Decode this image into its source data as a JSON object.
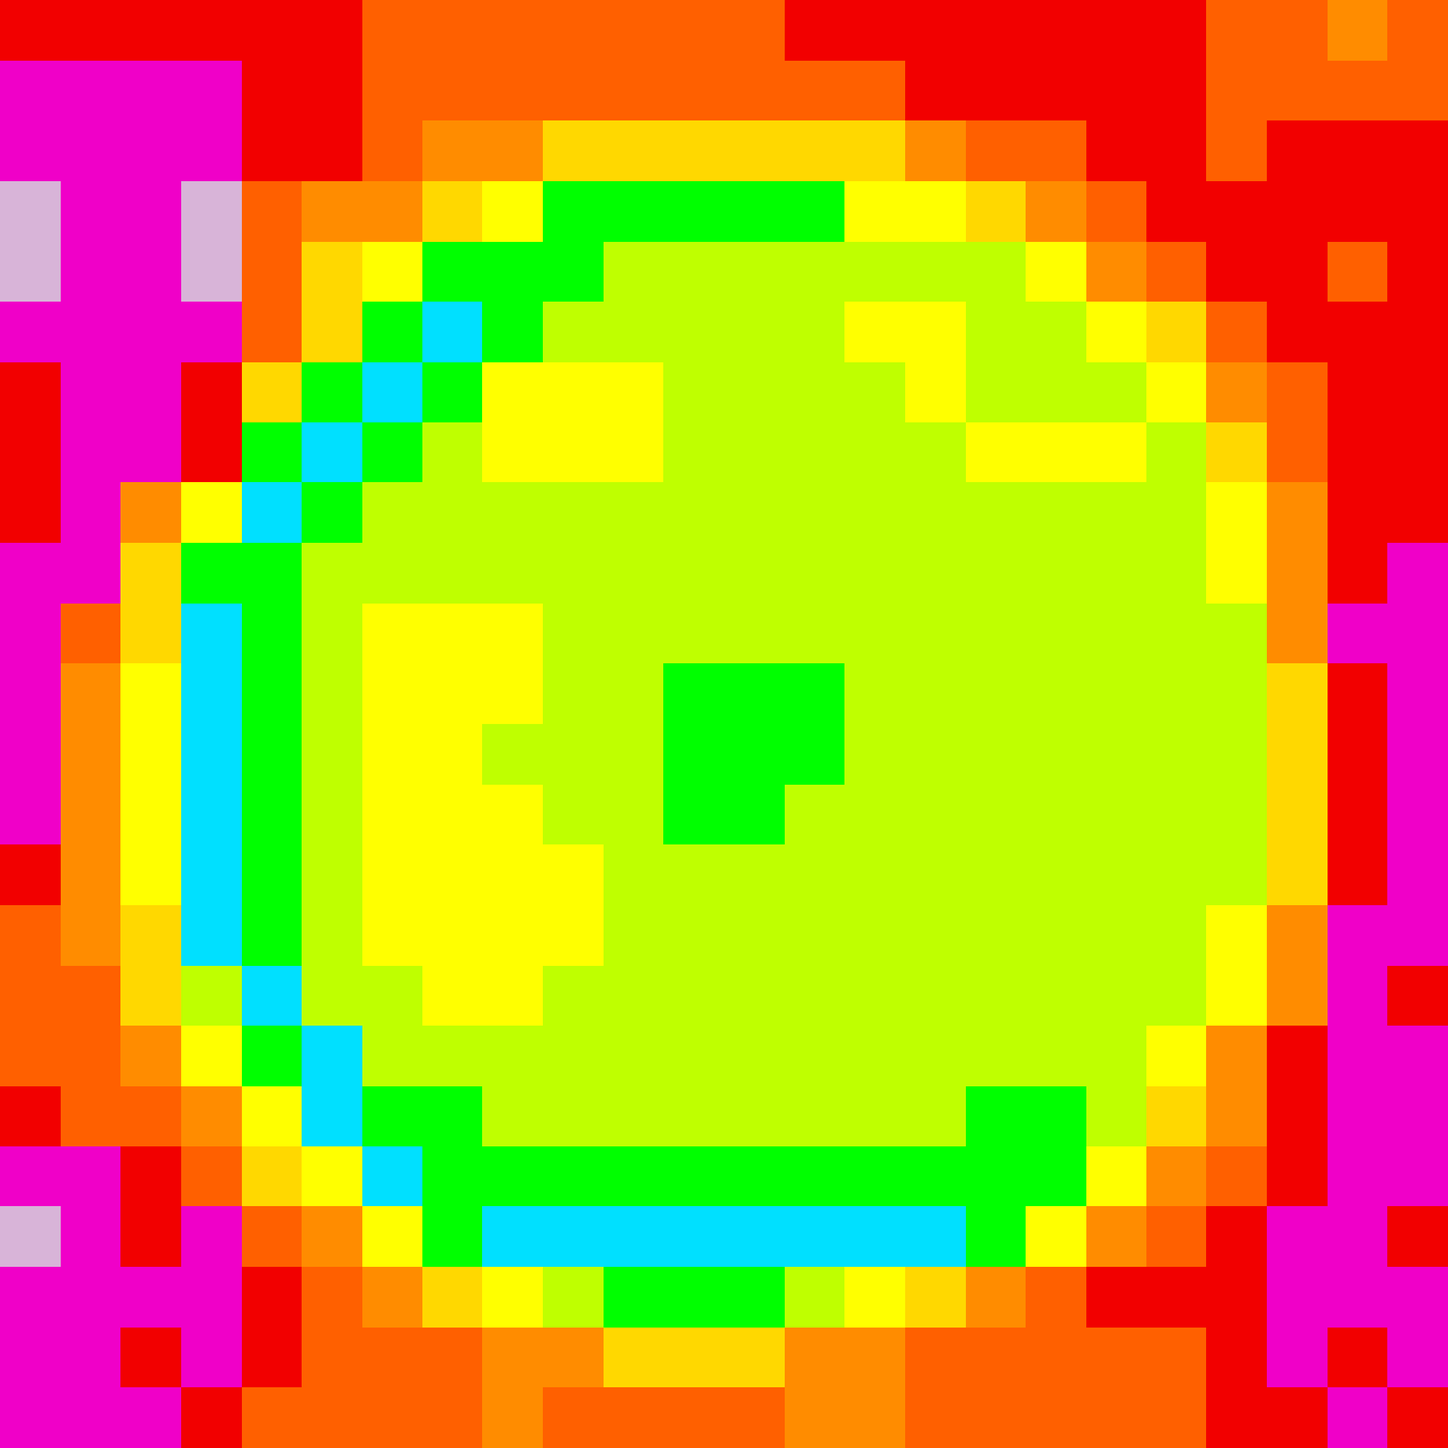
{
  "chart_data": {
    "type": "contour",
    "levels": [
      -0.5,
      0.5,
      1.5,
      2.5,
      3.5,
      4.5,
      5.5,
      6.5,
      7.5,
      8.5,
      9.5
    ],
    "colors": [
      "#d8b4d8",
      "#f000c8",
      "#f20000",
      "#ff6000",
      "#ff8c00",
      "#ffd800",
      "#ffff00",
      "#bfff00",
      "#00ff00",
      "#00e0ff"
    ],
    "tick_labels": false,
    "z": [
      [
        2,
        2,
        2,
        2,
        2,
        2,
        3,
        3,
        3,
        3,
        3,
        3,
        3,
        2,
        2,
        2,
        2,
        2,
        2,
        2,
        3,
        3,
        4,
        3
      ],
      [
        1,
        1,
        1,
        1,
        2,
        2,
        3,
        3,
        3,
        3,
        3,
        3,
        3,
        3,
        3,
        2,
        2,
        2,
        2,
        2,
        3,
        3,
        3,
        3
      ],
      [
        1,
        1,
        1,
        1,
        2,
        2,
        3,
        4,
        4,
        5,
        5,
        5,
        5,
        5,
        5,
        4,
        3,
        3,
        2,
        2,
        3,
        2,
        2,
        2
      ],
      [
        0,
        1,
        1,
        0,
        3,
        4,
        4,
        5,
        6,
        8,
        8,
        8,
        8,
        8,
        6,
        6,
        5,
        4,
        3,
        2,
        2,
        2,
        2,
        2
      ],
      [
        0,
        1,
        1,
        0,
        3,
        5,
        6,
        8,
        8,
        8,
        7,
        7,
        7,
        7,
        7,
        7,
        7,
        6,
        4,
        3,
        2,
        2,
        3,
        2
      ],
      [
        1,
        1,
        1,
        1,
        3,
        5,
        8,
        9,
        8,
        7,
        7,
        7,
        7,
        7,
        6,
        6,
        7,
        7,
        6,
        5,
        3,
        2,
        2,
        2
      ],
      [
        2,
        1,
        1,
        2,
        5,
        8,
        9,
        8,
        6,
        6,
        6,
        7,
        7,
        7,
        7,
        6,
        7,
        7,
        7,
        6,
        4,
        3,
        2,
        2
      ],
      [
        2,
        1,
        1,
        2,
        8,
        9,
        8,
        7,
        6,
        6,
        6,
        7,
        7,
        7,
        7,
        7,
        6,
        6,
        6,
        7,
        5,
        3,
        2,
        2
      ],
      [
        2,
        1,
        4,
        6,
        9,
        8,
        7,
        7,
        7,
        7,
        7,
        7,
        7,
        7,
        7,
        7,
        7,
        7,
        7,
        7,
        6,
        4,
        2,
        2
      ],
      [
        1,
        1,
        5,
        8,
        8,
        7,
        7,
        7,
        7,
        7,
        7,
        7,
        7,
        7,
        7,
        7,
        7,
        7,
        7,
        7,
        6,
        4,
        2,
        1
      ],
      [
        1,
        3,
        5,
        9,
        8,
        7,
        6,
        6,
        6,
        7,
        7,
        7,
        7,
        7,
        7,
        7,
        7,
        7,
        7,
        7,
        7,
        4,
        1,
        1
      ],
      [
        1,
        4,
        6,
        9,
        8,
        7,
        6,
        6,
        6,
        7,
        7,
        8,
        8,
        8,
        7,
        7,
        7,
        7,
        7,
        7,
        7,
        5,
        2,
        1
      ],
      [
        1,
        4,
        6,
        9,
        8,
        7,
        6,
        6,
        7,
        7,
        7,
        8,
        8,
        8,
        7,
        7,
        7,
        7,
        7,
        7,
        7,
        5,
        2,
        1
      ],
      [
        1,
        4,
        6,
        9,
        8,
        7,
        6,
        6,
        6,
        7,
        7,
        8,
        8,
        7,
        7,
        7,
        7,
        7,
        7,
        7,
        7,
        5,
        2,
        1
      ],
      [
        2,
        4,
        6,
        9,
        8,
        7,
        6,
        6,
        6,
        6,
        7,
        7,
        7,
        7,
        7,
        7,
        7,
        7,
        7,
        7,
        7,
        5,
        2,
        1
      ],
      [
        3,
        4,
        5,
        9,
        8,
        7,
        6,
        6,
        6,
        6,
        7,
        7,
        7,
        7,
        7,
        7,
        7,
        7,
        7,
        7,
        6,
        4,
        1,
        1
      ],
      [
        3,
        3,
        5,
        7,
        9,
        7,
        7,
        6,
        6,
        7,
        7,
        7,
        7,
        7,
        7,
        7,
        7,
        7,
        7,
        7,
        6,
        4,
        1,
        2
      ],
      [
        3,
        3,
        4,
        6,
        8,
        9,
        7,
        7,
        7,
        7,
        7,
        7,
        7,
        7,
        7,
        7,
        7,
        7,
        7,
        6,
        4,
        2,
        1,
        1
      ],
      [
        2,
        3,
        3,
        4,
        6,
        9,
        8,
        8,
        7,
        7,
        7,
        7,
        7,
        7,
        7,
        7,
        8,
        8,
        7,
        5,
        4,
        2,
        1,
        1
      ],
      [
        1,
        1,
        2,
        3,
        5,
        6,
        9,
        8,
        8,
        8,
        8,
        8,
        8,
        8,
        8,
        8,
        8,
        8,
        6,
        4,
        3,
        2,
        1,
        1
      ],
      [
        0,
        1,
        2,
        1,
        3,
        4,
        6,
        8,
        9,
        9,
        9,
        9,
        9,
        9,
        9,
        9,
        8,
        6,
        4,
        3,
        2,
        1,
        1,
        2
      ],
      [
        1,
        1,
        1,
        1,
        2,
        3,
        4,
        5,
        6,
        7,
        8,
        8,
        8,
        7,
        6,
        5,
        4,
        3,
        2,
        2,
        2,
        1,
        1,
        1
      ],
      [
        1,
        1,
        2,
        1,
        2,
        3,
        3,
        3,
        4,
        4,
        5,
        5,
        5,
        4,
        4,
        3,
        3,
        3,
        3,
        3,
        2,
        1,
        2,
        1
      ],
      [
        1,
        1,
        1,
        2,
        3,
        3,
        3,
        3,
        4,
        3,
        3,
        3,
        3,
        4,
        4,
        3,
        3,
        3,
        3,
        3,
        2,
        2,
        1,
        2
      ]
    ]
  }
}
